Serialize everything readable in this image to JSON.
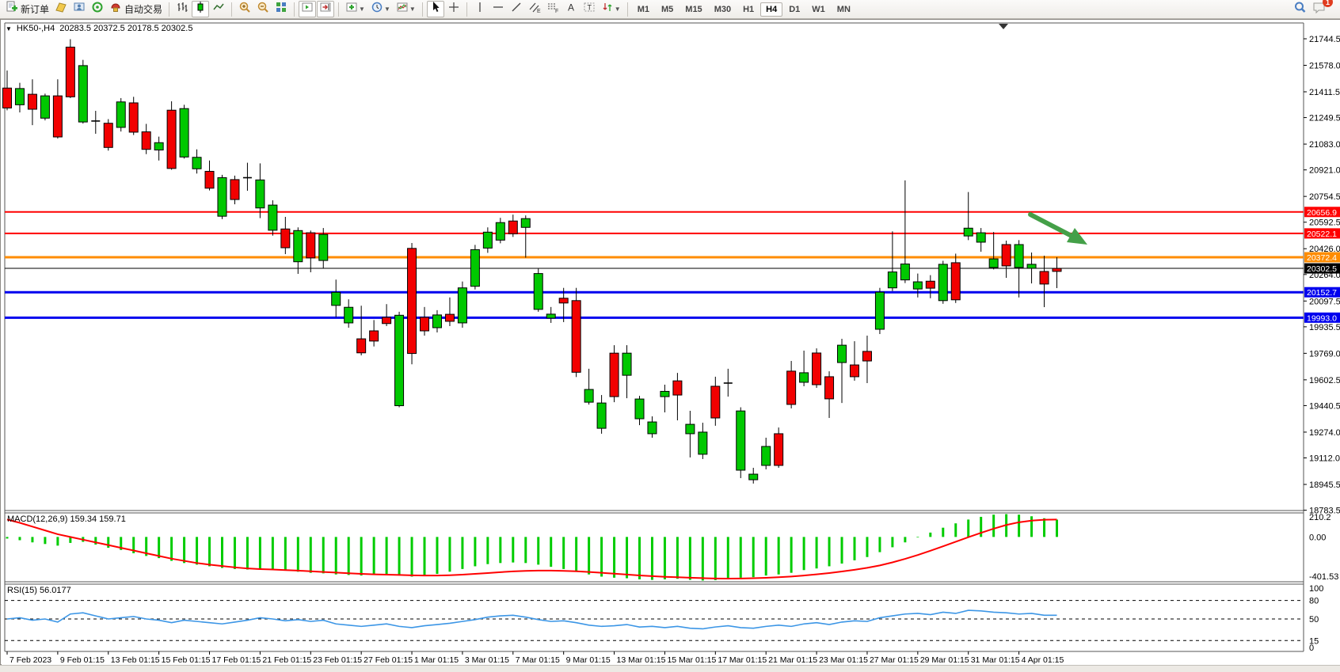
{
  "toolbar": {
    "new_order_label": "新订单",
    "autotrade_label": "自动交易",
    "timeframes": [
      "M1",
      "M5",
      "M15",
      "M30",
      "H1",
      "H4",
      "D1",
      "W1",
      "MN"
    ],
    "active_timeframe": "H4",
    "notification_count": "1"
  },
  "chart_header": {
    "symbol": "HK50-,H4",
    "ohlc": "20283.5 20372.5 20178.5 20302.5"
  },
  "indicators": {
    "macd_label": "MACD(12,26,9) 159.34 159.71",
    "rsi_label": "RSI(15) 56.0177"
  },
  "colors": {
    "bull": "#00C800",
    "bear": "#F20000",
    "wick": "#000000",
    "macd_hist": "#00CC00",
    "macd_signal": "#FF0000",
    "rsi_line": "#3C96E6",
    "arrow": "#44A048",
    "level_red": "#FF0000",
    "level_orange": "#FF8C00",
    "level_blue": "#0000EE",
    "level_black": "#000000"
  },
  "chart_data": {
    "type": "candlestick",
    "title": "HK50-,H4 20283.5 20372.5 20178.5 20302.5",
    "current_bar": {
      "open": 20283.5,
      "high": 20372.5,
      "low": 20178.5,
      "close": 20302.5
    },
    "y_ticks": [
      21744.5,
      21578.0,
      21411.5,
      21249.5,
      21083.0,
      20921.0,
      20754.5,
      20592.5,
      20426.0,
      20264.0,
      20097.5,
      19935.5,
      19769.0,
      19602.5,
      19440.5,
      19274.0,
      19112.0,
      18945.5,
      18783.5
    ],
    "x_labels": [
      "7 Feb 2023",
      "9 Feb 01:15",
      "13 Feb 01:15",
      "15 Feb 01:15",
      "17 Feb 01:15",
      "21 Feb 01:15",
      "23 Feb 01:15",
      "27 Feb 01:15",
      "1 Mar 01:15",
      "3 Mar 01:15",
      "7 Mar 01:15",
      "9 Mar 01:15",
      "13 Mar 01:15",
      "15 Mar 01:15",
      "17 Mar 01:15",
      "21 Mar 01:15",
      "23 Mar 01:15",
      "27 Mar 01:15",
      "29 Mar 01:15",
      "31 Mar 01:15",
      "4 Apr 01:15"
    ],
    "hlines": [
      {
        "price": 20656.9,
        "color": "#FF0000",
        "width": 2,
        "label": "20656.9"
      },
      {
        "price": 20522.1,
        "color": "#FF0000",
        "width": 2,
        "label": "20522.1"
      },
      {
        "price": 20372.4,
        "color": "#FF8C00",
        "width": 3,
        "label": "20372.4"
      },
      {
        "price": 20302.5,
        "color": "#000000",
        "width": 1,
        "label": "20302.5"
      },
      {
        "price": 20152.7,
        "color": "#0000EE",
        "width": 3,
        "label": "20152.7"
      },
      {
        "price": 19993.0,
        "color": "#0000EE",
        "width": 3,
        "label": "19993.0"
      }
    ],
    "candles": [
      [
        "r",
        21435,
        21310,
        21545,
        21295
      ],
      [
        "g",
        21432,
        21330,
        21468,
        21282
      ],
      [
        "r",
        21396,
        21302,
        21490,
        21202
      ],
      [
        "g",
        21386,
        21246,
        21400,
        21232
      ],
      [
        "r",
        21386,
        21128,
        21490,
        21118
      ],
      [
        "r",
        21692,
        21380,
        21742,
        21372
      ],
      [
        "g",
        21576,
        21222,
        21612,
        21212
      ],
      [
        "d",
        21228,
        21218,
        21292,
        21148
      ],
      [
        "r",
        21214,
        21062,
        21240,
        21042
      ],
      [
        "g",
        21348,
        21188,
        21372,
        21162
      ],
      [
        "r",
        21342,
        21158,
        21380,
        21140
      ],
      [
        "r",
        21160,
        21050,
        21210,
        21020
      ],
      [
        "g",
        21092,
        21046,
        21130,
        20980
      ],
      [
        "r",
        21296,
        20930,
        21352,
        20922
      ],
      [
        "g",
        21306,
        21002,
        21330,
        20992
      ],
      [
        "g",
        21000,
        20928,
        21050,
        20898
      ],
      [
        "r",
        20912,
        20806,
        20980,
        20792
      ],
      [
        "g",
        20872,
        20630,
        20890,
        20612
      ],
      [
        "r",
        20860,
        20735,
        20885,
        20705
      ],
      [
        "d",
        20872,
        20866,
        20966,
        20790
      ],
      [
        "g",
        20858,
        20682,
        20962,
        20618
      ],
      [
        "g",
        20700,
        20542,
        20730,
        20508
      ],
      [
        "r",
        20550,
        20432,
        20626,
        20392
      ],
      [
        "g",
        20540,
        20344,
        20560,
        20268
      ],
      [
        "r",
        20526,
        20368,
        20540,
        20278
      ],
      [
        "g",
        20516,
        20352,
        20556,
        20303
      ],
      [
        "g",
        20152,
        20070,
        20232,
        19996
      ],
      [
        "g",
        20058,
        19960,
        20108,
        19930
      ],
      [
        "r",
        19860,
        19772,
        20068,
        19756
      ],
      [
        "r",
        19910,
        19846,
        19978,
        19812
      ],
      [
        "r",
        19995,
        19956,
        20078,
        19940
      ],
      [
        "g",
        20008,
        19440,
        20030,
        19430
      ],
      [
        "r",
        20428,
        19768,
        20462,
        19700
      ],
      [
        "r",
        19995,
        19910,
        20060,
        19880
      ],
      [
        "g",
        20010,
        19930,
        20040,
        19900
      ],
      [
        "r",
        20014,
        19970,
        20120,
        19940
      ],
      [
        "g",
        20180,
        19960,
        20220,
        19930
      ],
      [
        "g",
        20420,
        20190,
        20450,
        20170
      ],
      [
        "g",
        20530,
        20430,
        20560,
        20400
      ],
      [
        "g",
        20590,
        20480,
        20620,
        20460
      ],
      [
        "r",
        20600,
        20520,
        20640,
        20500
      ],
      [
        "g",
        20615,
        20560,
        20635,
        20370
      ],
      [
        "g",
        20270,
        20045,
        20300,
        20030
      ],
      [
        "g",
        20015,
        19990,
        20060,
        19960
      ],
      [
        "r",
        20115,
        20085,
        20180,
        19965
      ],
      [
        "r",
        20100,
        19650,
        20180,
        19620
      ],
      [
        "g",
        19542,
        19462,
        19672,
        19447
      ],
      [
        "g",
        19457,
        19298,
        19507,
        19264
      ],
      [
        "r",
        19770,
        19497,
        19820,
        19462
      ],
      [
        "g",
        19770,
        19631,
        19820,
        19487
      ],
      [
        "g",
        19482,
        19358,
        19502,
        19318
      ],
      [
        "g",
        19338,
        19264,
        19373,
        19239
      ],
      [
        "g",
        19530,
        19497,
        19572,
        19398
      ],
      [
        "r",
        19596,
        19507,
        19646,
        19348
      ],
      [
        "g",
        19323,
        19264,
        19408,
        19115
      ],
      [
        "g",
        19274,
        19135,
        19333,
        19105
      ],
      [
        "r",
        19562,
        19363,
        19622,
        19314
      ],
      [
        "d",
        19582,
        19578,
        19672,
        19497
      ],
      [
        "g",
        19407,
        19035,
        19430,
        18985
      ],
      [
        "g",
        19010,
        18975,
        19050,
        18951
      ],
      [
        "g",
        19184,
        19065,
        19239,
        19040
      ],
      [
        "r",
        19264,
        19065,
        19303,
        19050
      ],
      [
        "r",
        19657,
        19448,
        19721,
        19423
      ],
      [
        "g",
        19647,
        19587,
        19786,
        19562
      ],
      [
        "r",
        19771,
        19572,
        19800,
        19552
      ],
      [
        "r",
        19622,
        19483,
        19656,
        19363
      ],
      [
        "g",
        19820,
        19711,
        19860,
        19457
      ],
      [
        "r",
        19696,
        19622,
        19845,
        19597
      ],
      [
        "r",
        19781,
        19721,
        19880,
        19582
      ],
      [
        "g",
        20153,
        19920,
        20180,
        19890
      ],
      [
        "g",
        20280,
        20180,
        20535,
        20160
      ],
      [
        "g",
        20330,
        20230,
        20855,
        20210
      ],
      [
        "g",
        20218,
        20173,
        20270,
        20120
      ],
      [
        "r",
        20222,
        20178,
        20260,
        20115
      ],
      [
        "g",
        20328,
        20100,
        20350,
        20080
      ],
      [
        "r",
        20338,
        20105,
        20395,
        20085
      ],
      [
        "g",
        20555,
        20506,
        20782,
        20480
      ],
      [
        "g",
        20526,
        20467,
        20556,
        20407
      ],
      [
        "g",
        20362,
        20308,
        20531,
        20296
      ],
      [
        "r",
        20452,
        20318,
        20477,
        20243
      ],
      [
        "g",
        20452,
        20308,
        20480,
        20120
      ],
      [
        "g",
        20328,
        20303,
        20402,
        20208
      ],
      [
        "r",
        20283,
        20204,
        20382,
        20059
      ],
      [
        "r",
        20302.5,
        20283.5,
        20372.5,
        20178.5
      ]
    ],
    "macd": {
      "params": "12,26,9",
      "value_macd": 159.34,
      "value_signal": 159.71,
      "axis_labels": [
        "210.2",
        "0.00",
        "-401.53"
      ],
      "axis_values": [
        210.2,
        0,
        -401.53
      ],
      "hist": [
        -15,
        -30,
        -50,
        -65,
        -80,
        -55,
        -45,
        -70,
        -100,
        -120,
        -150,
        -175,
        -195,
        -220,
        -240,
        -255,
        -270,
        -285,
        -295,
        -300,
        -295,
        -300,
        -310,
        -320,
        -330,
        -335,
        -345,
        -350,
        -355,
        -350,
        -345,
        -355,
        -365,
        -355,
        -340,
        -320,
        -295,
        -270,
        -250,
        -240,
        -235,
        -240,
        -255,
        -275,
        -295,
        -320,
        -345,
        -365,
        -375,
        -380,
        -390,
        -395,
        -390,
        -385,
        -395,
        -401,
        -398,
        -385,
        -375,
        -370,
        -355,
        -345,
        -330,
        -305,
        -290,
        -270,
        -245,
        -215,
        -185,
        -140,
        -95,
        -50,
        -5,
        40,
        85,
        125,
        160,
        185,
        205,
        210,
        205,
        190,
        172,
        159.34
      ],
      "signal": [
        160,
        130,
        95,
        60,
        25,
        0,
        -25,
        -50,
        -75,
        -100,
        -125,
        -150,
        -175,
        -200,
        -220,
        -240,
        -255,
        -268,
        -280,
        -290,
        -296,
        -300,
        -305,
        -310,
        -316,
        -322,
        -328,
        -334,
        -340,
        -344,
        -347,
        -350,
        -353,
        -355,
        -355,
        -352,
        -347,
        -340,
        -332,
        -324,
        -317,
        -312,
        -310,
        -310,
        -312,
        -316,
        -322,
        -330,
        -338,
        -346,
        -354,
        -361,
        -367,
        -371,
        -375,
        -379,
        -382,
        -383,
        -382,
        -380,
        -376,
        -371,
        -364,
        -355,
        -344,
        -332,
        -318,
        -302,
        -284,
        -262,
        -234,
        -202,
        -166,
        -127,
        -86,
        -44,
        -2,
        38,
        76,
        110,
        135,
        150,
        158,
        159.71
      ]
    },
    "rsi": {
      "period": 15,
      "value": 56.0177,
      "levels": [
        80,
        50,
        15
      ],
      "axis_labels": [
        "100",
        "80",
        "50",
        "15",
        "0"
      ],
      "axis_values": [
        100,
        80,
        50,
        15,
        0
      ],
      "values": [
        50,
        52,
        48,
        50,
        45,
        58,
        60,
        55,
        50,
        52,
        54,
        50,
        48,
        44,
        48,
        46,
        44,
        42,
        45,
        48,
        52,
        50,
        47,
        49,
        46,
        48,
        42,
        40,
        38,
        40,
        42,
        38,
        36,
        39,
        41,
        43,
        46,
        49,
        53,
        55,
        56,
        53,
        49,
        46,
        47,
        44,
        40,
        38,
        39,
        41,
        37,
        38,
        36,
        38,
        35,
        34,
        37,
        39,
        36,
        35,
        38,
        40,
        38,
        42,
        44,
        41,
        45,
        47,
        46,
        52,
        55,
        58,
        59,
        57,
        61,
        59,
        64,
        63,
        61,
        60,
        58,
        59,
        56,
        56.0177
      ]
    },
    "annotation_arrow": {
      "from": [
        1300,
        270
      ],
      "to": [
        1352,
        297
      ],
      "tip": [
        1372,
        308
      ],
      "color": "#44A048"
    }
  }
}
